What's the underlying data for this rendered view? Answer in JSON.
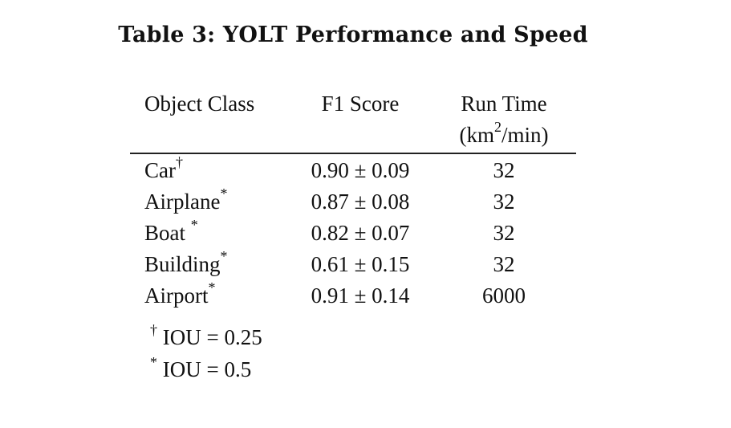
{
  "caption": "Table 3: YOLT Performance and Speed",
  "table": {
    "headers": {
      "object_class": "Object Class",
      "f1_score": "F1 Score",
      "run_time_line1": "Run Time",
      "run_time_line2_prefix": "(km",
      "run_time_line2_sup": "2",
      "run_time_line2_suffix": "/min)"
    },
    "rows": [
      {
        "class": "Car",
        "mark": "†",
        "f1": "0.90 ± 0.09",
        "run_time": "32"
      },
      {
        "class": "Airplane",
        "mark": "*",
        "f1": "0.87 ± 0.08",
        "run_time": "32"
      },
      {
        "class": "Boat ",
        "mark": "*",
        "f1": "0.82 ± 0.07",
        "run_time": "32"
      },
      {
        "class": "Building",
        "mark": "*",
        "f1": "0.61 ± 0.15",
        "run_time": "32"
      },
      {
        "class": "Airport",
        "mark": "*",
        "f1": "0.91 ± 0.14",
        "run_time": "6000"
      }
    ]
  },
  "notes": [
    {
      "mark": "†",
      "text": " IOU = 0.25"
    },
    {
      "mark": "*",
      "text": " IOU = 0.5"
    }
  ]
}
